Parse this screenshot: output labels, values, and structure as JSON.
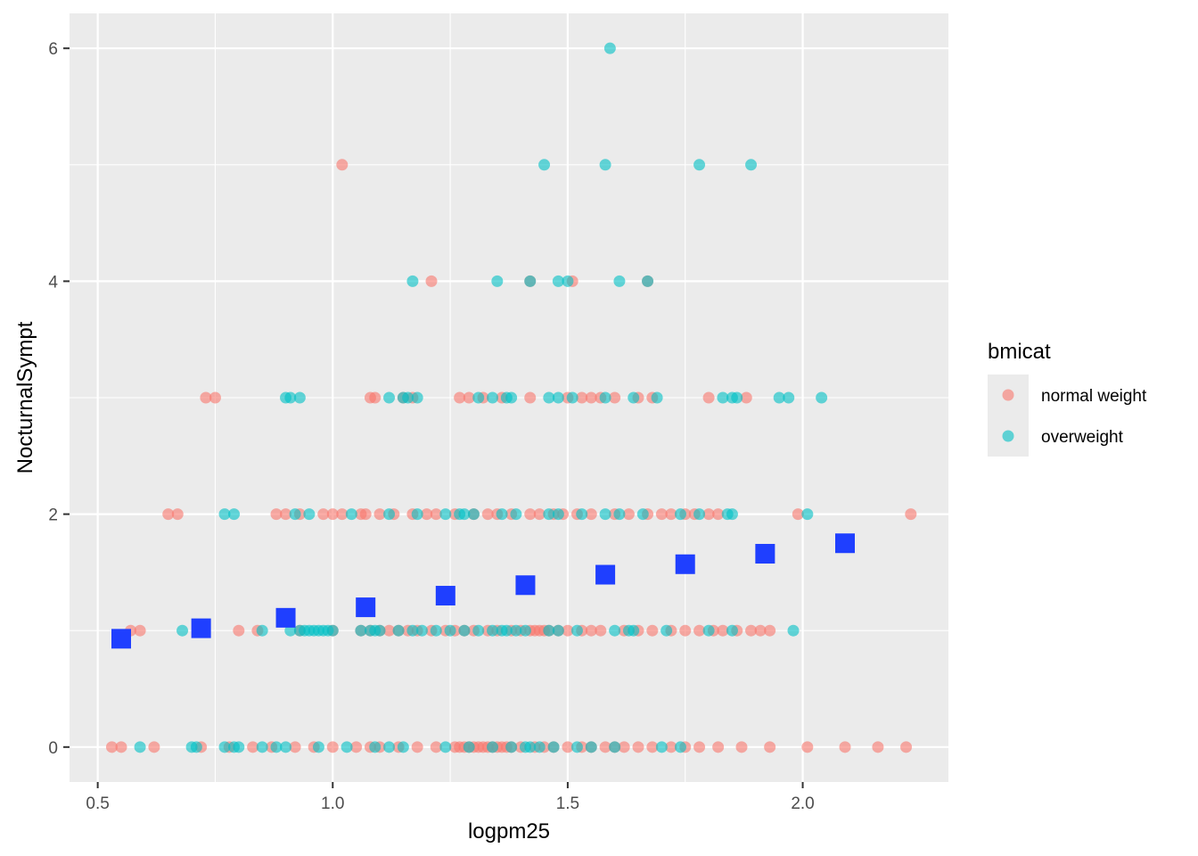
{
  "chart_data": {
    "type": "scatter",
    "title": "",
    "xlabel": "logpm25",
    "ylabel": "NocturnalSympt",
    "xlim": [
      0.44,
      2.31
    ],
    "ylim": [
      -0.3,
      6.3
    ],
    "x_ticks": [
      0.5,
      1.0,
      1.5,
      2.0
    ],
    "x_tick_labels": [
      "0.5",
      "1.0",
      "1.5",
      "2.0"
    ],
    "y_ticks": [
      0,
      2,
      4,
      6
    ],
    "y_tick_labels": [
      "0",
      "2",
      "4",
      "6"
    ],
    "grid": true,
    "legend": {
      "title": "bmicat",
      "position": "right",
      "entries": [
        {
          "label": "normal weight",
          "color": "#F8766D"
        },
        {
          "label": "overweight",
          "color": "#00BFC4"
        }
      ]
    },
    "colors": {
      "panel": "#EBEBEB",
      "gridline": "#FFFFFF",
      "normal_weight": "#F8766D",
      "overweight": "#00BFC4",
      "trend": "#1F3FFF"
    },
    "series": [
      {
        "name": "normal weight",
        "color": "#F8766D",
        "points": [
          [
            0.53,
            0
          ],
          [
            0.55,
            0
          ],
          [
            0.62,
            0
          ],
          [
            0.72,
            0
          ],
          [
            0.78,
            0
          ],
          [
            0.83,
            0
          ],
          [
            0.87,
            0
          ],
          [
            0.92,
            0
          ],
          [
            0.96,
            0
          ],
          [
            1.0,
            0
          ],
          [
            1.05,
            0
          ],
          [
            1.08,
            0
          ],
          [
            1.1,
            0
          ],
          [
            1.14,
            0
          ],
          [
            1.18,
            0
          ],
          [
            1.22,
            0
          ],
          [
            1.26,
            0
          ],
          [
            1.27,
            0
          ],
          [
            1.28,
            0
          ],
          [
            1.29,
            0
          ],
          [
            1.3,
            0
          ],
          [
            1.31,
            0
          ],
          [
            1.32,
            0
          ],
          [
            1.33,
            0
          ],
          [
            1.34,
            0
          ],
          [
            1.35,
            0
          ],
          [
            1.36,
            0
          ],
          [
            1.37,
            0
          ],
          [
            1.38,
            0
          ],
          [
            1.4,
            0
          ],
          [
            1.43,
            0
          ],
          [
            1.45,
            0
          ],
          [
            1.47,
            0
          ],
          [
            1.5,
            0
          ],
          [
            1.53,
            0
          ],
          [
            1.55,
            0
          ],
          [
            1.58,
            0
          ],
          [
            1.6,
            0
          ],
          [
            1.62,
            0
          ],
          [
            1.65,
            0
          ],
          [
            1.68,
            0
          ],
          [
            1.72,
            0
          ],
          [
            1.75,
            0
          ],
          [
            1.78,
            0
          ],
          [
            1.82,
            0
          ],
          [
            1.87,
            0
          ],
          [
            1.93,
            0
          ],
          [
            2.01,
            0
          ],
          [
            2.09,
            0
          ],
          [
            2.16,
            0
          ],
          [
            2.22,
            0
          ],
          [
            0.57,
            1
          ],
          [
            0.59,
            1
          ],
          [
            0.8,
            1
          ],
          [
            0.84,
            1
          ],
          [
            0.93,
            1
          ],
          [
            1.0,
            1
          ],
          [
            1.06,
            1
          ],
          [
            1.08,
            1
          ],
          [
            1.1,
            1
          ],
          [
            1.12,
            1
          ],
          [
            1.14,
            1
          ],
          [
            1.16,
            1
          ],
          [
            1.18,
            1
          ],
          [
            1.21,
            1
          ],
          [
            1.24,
            1
          ],
          [
            1.26,
            1
          ],
          [
            1.28,
            1
          ],
          [
            1.3,
            1
          ],
          [
            1.33,
            1
          ],
          [
            1.35,
            1
          ],
          [
            1.38,
            1
          ],
          [
            1.4,
            1
          ],
          [
            1.42,
            1
          ],
          [
            1.43,
            1
          ],
          [
            1.44,
            1
          ],
          [
            1.45,
            1
          ],
          [
            1.46,
            1
          ],
          [
            1.48,
            1
          ],
          [
            1.5,
            1
          ],
          [
            1.53,
            1
          ],
          [
            1.55,
            1
          ],
          [
            1.57,
            1
          ],
          [
            1.62,
            1
          ],
          [
            1.65,
            1
          ],
          [
            1.68,
            1
          ],
          [
            1.72,
            1
          ],
          [
            1.75,
            1
          ],
          [
            1.78,
            1
          ],
          [
            1.81,
            1
          ],
          [
            1.83,
            1
          ],
          [
            1.86,
            1
          ],
          [
            1.89,
            1
          ],
          [
            1.91,
            1
          ],
          [
            1.93,
            1
          ],
          [
            0.65,
            2
          ],
          [
            0.67,
            2
          ],
          [
            0.88,
            2
          ],
          [
            0.9,
            2
          ],
          [
            0.93,
            2
          ],
          [
            0.98,
            2
          ],
          [
            1.0,
            2
          ],
          [
            1.02,
            2
          ],
          [
            1.06,
            2
          ],
          [
            1.07,
            2
          ],
          [
            1.1,
            2
          ],
          [
            1.13,
            2
          ],
          [
            1.17,
            2
          ],
          [
            1.2,
            2
          ],
          [
            1.22,
            2
          ],
          [
            1.26,
            2
          ],
          [
            1.3,
            2
          ],
          [
            1.33,
            2
          ],
          [
            1.35,
            2
          ],
          [
            1.38,
            2
          ],
          [
            1.42,
            2
          ],
          [
            1.44,
            2
          ],
          [
            1.47,
            2
          ],
          [
            1.49,
            2
          ],
          [
            1.52,
            2
          ],
          [
            1.55,
            2
          ],
          [
            1.6,
            2
          ],
          [
            1.63,
            2
          ],
          [
            1.67,
            2
          ],
          [
            1.7,
            2
          ],
          [
            1.72,
            2
          ],
          [
            1.75,
            2
          ],
          [
            1.77,
            2
          ],
          [
            1.8,
            2
          ],
          [
            1.82,
            2
          ],
          [
            1.99,
            2
          ],
          [
            2.23,
            2
          ],
          [
            0.73,
            3
          ],
          [
            0.75,
            3
          ],
          [
            1.08,
            3
          ],
          [
            1.09,
            3
          ],
          [
            1.15,
            3
          ],
          [
            1.17,
            3
          ],
          [
            1.27,
            3
          ],
          [
            1.29,
            3
          ],
          [
            1.32,
            3
          ],
          [
            1.36,
            3
          ],
          [
            1.42,
            3
          ],
          [
            1.5,
            3
          ],
          [
            1.53,
            3
          ],
          [
            1.55,
            3
          ],
          [
            1.57,
            3
          ],
          [
            1.6,
            3
          ],
          [
            1.65,
            3
          ],
          [
            1.68,
            3
          ],
          [
            1.8,
            3
          ],
          [
            1.88,
            3
          ],
          [
            1.21,
            4
          ],
          [
            1.42,
            4
          ],
          [
            1.51,
            4
          ],
          [
            1.67,
            4
          ],
          [
            1.02,
            5
          ]
        ]
      },
      {
        "name": "overweight",
        "color": "#00BFC4",
        "points": [
          [
            0.59,
            0
          ],
          [
            0.7,
            0
          ],
          [
            0.71,
            0
          ],
          [
            0.77,
            0
          ],
          [
            0.79,
            0
          ],
          [
            0.8,
            0
          ],
          [
            0.85,
            0
          ],
          [
            0.88,
            0
          ],
          [
            0.9,
            0
          ],
          [
            0.97,
            0
          ],
          [
            1.03,
            0
          ],
          [
            1.09,
            0
          ],
          [
            1.12,
            0
          ],
          [
            1.15,
            0
          ],
          [
            1.24,
            0
          ],
          [
            1.29,
            0
          ],
          [
            1.34,
            0
          ],
          [
            1.38,
            0
          ],
          [
            1.41,
            0
          ],
          [
            1.42,
            0
          ],
          [
            1.44,
            0
          ],
          [
            1.47,
            0
          ],
          [
            1.52,
            0
          ],
          [
            1.55,
            0
          ],
          [
            1.6,
            0
          ],
          [
            1.7,
            0
          ],
          [
            1.74,
            0
          ],
          [
            0.68,
            1
          ],
          [
            0.85,
            1
          ],
          [
            0.91,
            1
          ],
          [
            0.93,
            1
          ],
          [
            0.94,
            1
          ],
          [
            0.95,
            1
          ],
          [
            0.96,
            1
          ],
          [
            0.97,
            1
          ],
          [
            0.98,
            1
          ],
          [
            0.99,
            1
          ],
          [
            1.0,
            1
          ],
          [
            1.06,
            1
          ],
          [
            1.08,
            1
          ],
          [
            1.09,
            1
          ],
          [
            1.1,
            1
          ],
          [
            1.14,
            1
          ],
          [
            1.17,
            1
          ],
          [
            1.19,
            1
          ],
          [
            1.22,
            1
          ],
          [
            1.25,
            1
          ],
          [
            1.28,
            1
          ],
          [
            1.31,
            1
          ],
          [
            1.34,
            1
          ],
          [
            1.36,
            1
          ],
          [
            1.37,
            1
          ],
          [
            1.39,
            1
          ],
          [
            1.41,
            1
          ],
          [
            1.46,
            1
          ],
          [
            1.48,
            1
          ],
          [
            1.52,
            1
          ],
          [
            1.6,
            1
          ],
          [
            1.63,
            1
          ],
          [
            1.64,
            1
          ],
          [
            1.71,
            1
          ],
          [
            1.8,
            1
          ],
          [
            1.85,
            1
          ],
          [
            1.98,
            1
          ],
          [
            0.77,
            2
          ],
          [
            0.79,
            2
          ],
          [
            0.92,
            2
          ],
          [
            0.95,
            2
          ],
          [
            1.04,
            2
          ],
          [
            1.12,
            2
          ],
          [
            1.18,
            2
          ],
          [
            1.24,
            2
          ],
          [
            1.27,
            2
          ],
          [
            1.28,
            2
          ],
          [
            1.3,
            2
          ],
          [
            1.36,
            2
          ],
          [
            1.39,
            2
          ],
          [
            1.46,
            2
          ],
          [
            1.48,
            2
          ],
          [
            1.53,
            2
          ],
          [
            1.58,
            2
          ],
          [
            1.61,
            2
          ],
          [
            1.66,
            2
          ],
          [
            1.74,
            2
          ],
          [
            1.78,
            2
          ],
          [
            1.84,
            2
          ],
          [
            1.85,
            2
          ],
          [
            2.01,
            2
          ],
          [
            0.9,
            3
          ],
          [
            0.91,
            3
          ],
          [
            0.93,
            3
          ],
          [
            1.12,
            3
          ],
          [
            1.15,
            3
          ],
          [
            1.16,
            3
          ],
          [
            1.18,
            3
          ],
          [
            1.31,
            3
          ],
          [
            1.34,
            3
          ],
          [
            1.37,
            3
          ],
          [
            1.38,
            3
          ],
          [
            1.46,
            3
          ],
          [
            1.48,
            3
          ],
          [
            1.51,
            3
          ],
          [
            1.58,
            3
          ],
          [
            1.64,
            3
          ],
          [
            1.69,
            3
          ],
          [
            1.83,
            3
          ],
          [
            1.85,
            3
          ],
          [
            1.86,
            3
          ],
          [
            1.95,
            3
          ],
          [
            1.97,
            3
          ],
          [
            2.04,
            3
          ],
          [
            1.17,
            4
          ],
          [
            1.35,
            4
          ],
          [
            1.42,
            4
          ],
          [
            1.48,
            4
          ],
          [
            1.5,
            4
          ],
          [
            1.61,
            4
          ],
          [
            1.67,
            4
          ],
          [
            1.45,
            5
          ],
          [
            1.58,
            5
          ],
          [
            1.78,
            5
          ],
          [
            1.89,
            5
          ],
          [
            1.59,
            6
          ]
        ]
      },
      {
        "name": "",
        "color": "#1F3FFF",
        "marker": "square",
        "points": [
          [
            0.55,
            0.93
          ],
          [
            0.72,
            1.02
          ],
          [
            0.9,
            1.11
          ],
          [
            1.07,
            1.2
          ],
          [
            1.24,
            1.3
          ],
          [
            1.41,
            1.39
          ],
          [
            1.58,
            1.48
          ],
          [
            1.75,
            1.57
          ],
          [
            1.92,
            1.66
          ],
          [
            2.09,
            1.75
          ]
        ]
      }
    ]
  }
}
